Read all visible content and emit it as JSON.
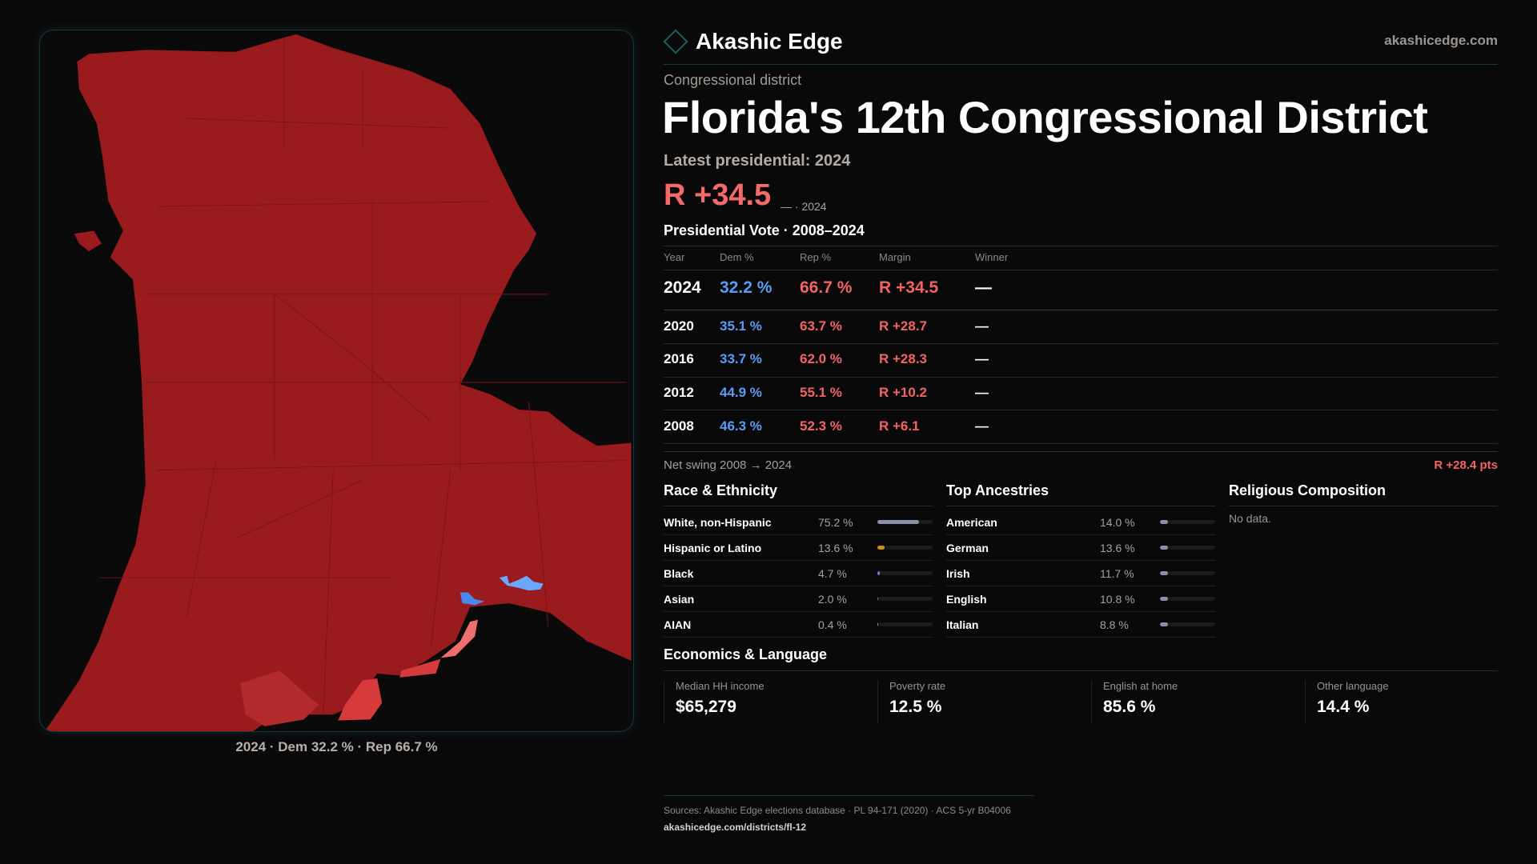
{
  "brand": {
    "name": "Akashic Edge",
    "site": "akashicedge.com",
    "logo_icon": "diamond-icon"
  },
  "header": {
    "kicker": "Congressional district",
    "title": "Florida's 12th Congressional District",
    "latest": "Latest presidential: 2024",
    "margin": "R +34.5",
    "margin_sub": "— · 2024"
  },
  "colors": {
    "dem": "#5a9cf5",
    "rep": "#f26464",
    "map_rep": "#9a1b1e",
    "accent": "#1c5d66"
  },
  "map": {
    "caption": "2024 · Dem 32.2 % · Rep 66.7 %"
  },
  "pres": {
    "title": "Presidential Vote · 2008–2024",
    "headers": [
      "Year",
      "Dem %",
      "Rep %",
      "Margin",
      "Winner"
    ],
    "rows": [
      {
        "year": "2024",
        "dem": "32.2 %",
        "rep": "66.7 %",
        "margin": "R +34.5",
        "winner": "—"
      },
      {
        "year": "2020",
        "dem": "35.1 %",
        "rep": "63.7 %",
        "margin": "R +28.7",
        "winner": "—"
      },
      {
        "year": "2016",
        "dem": "33.7 %",
        "rep": "62.0 %",
        "margin": "R +28.3",
        "winner": "—"
      },
      {
        "year": "2012",
        "dem": "44.9 %",
        "rep": "55.1 %",
        "margin": "R +10.2",
        "winner": "—"
      },
      {
        "year": "2008",
        "dem": "46.3 %",
        "rep": "52.3 %",
        "margin": "R +6.1",
        "winner": "—"
      }
    ],
    "swing_label": "Net swing 2008 → 2024",
    "swing_value": "R +28.4 pts"
  },
  "race": {
    "title": "Race & Ethnicity",
    "rows": [
      {
        "label": "White, non-Hispanic",
        "value": "75.2 %",
        "pct": 75.2,
        "color": "#8a94a8"
      },
      {
        "label": "Hispanic or Latino",
        "value": "13.6 %",
        "pct": 13.6,
        "color": "#d4900e"
      },
      {
        "label": "Black",
        "value": "4.7 %",
        "pct": 4.7,
        "color": "#8b6fd6"
      },
      {
        "label": "Asian",
        "value": "2.0 %",
        "pct": 2.0,
        "color": "#2ab07f"
      },
      {
        "label": "AIAN",
        "value": "0.4 %",
        "pct": 0.4,
        "color": "#b0a070"
      }
    ]
  },
  "ancestry": {
    "title": "Top Ancestries",
    "rows": [
      {
        "label": "American",
        "value": "14.0 %",
        "pct": 14.0,
        "color": "#8a94a8"
      },
      {
        "label": "German",
        "value": "13.6 %",
        "pct": 13.6,
        "color": "#8a94a8"
      },
      {
        "label": "Irish",
        "value": "11.7 %",
        "pct": 11.7,
        "color": "#8a94a8"
      },
      {
        "label": "English",
        "value": "10.8 %",
        "pct": 10.8,
        "color": "#8a94a8"
      },
      {
        "label": "Italian",
        "value": "8.8 %",
        "pct": 8.8,
        "color": "#8a94a8"
      }
    ]
  },
  "religion": {
    "title": "Religious Composition",
    "empty": "No data."
  },
  "econ": {
    "title": "Economics & Language",
    "stats": [
      {
        "label": "Median HH income",
        "value": "$65,279"
      },
      {
        "label": "Poverty rate",
        "value": "12.5 %"
      },
      {
        "label": "English at home",
        "value": "85.6 %"
      },
      {
        "label": "Other language",
        "value": "14.4 %"
      }
    ]
  },
  "footer": {
    "sources": "Sources: Akashic Edge elections database · PL 94-171 (2020) · ACS 5-yr B04006",
    "url": "akashicedge.com/districts/fl-12"
  }
}
